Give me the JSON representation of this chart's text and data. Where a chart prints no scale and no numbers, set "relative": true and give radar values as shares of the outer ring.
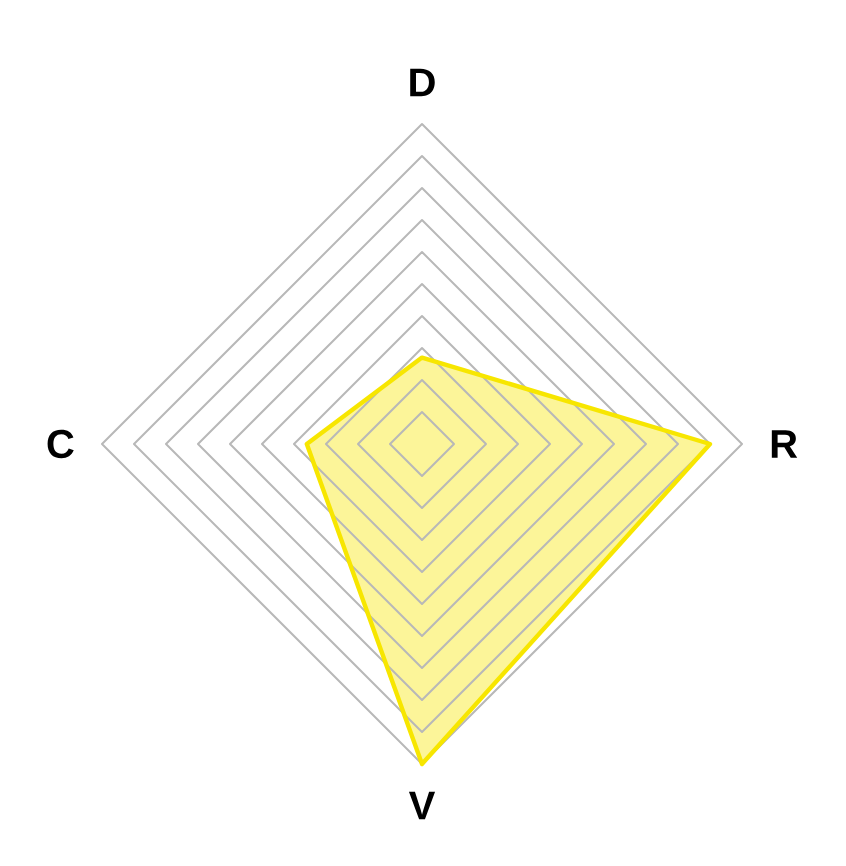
{
  "chart_data": {
    "type": "radar",
    "relative": true,
    "categories": [
      "D",
      "R",
      "V",
      "C"
    ],
    "series": [
      {
        "color": "#f7e600",
        "values": [
          0.27,
          0.9,
          1.0,
          0.36
        ]
      }
    ]
  }
}
